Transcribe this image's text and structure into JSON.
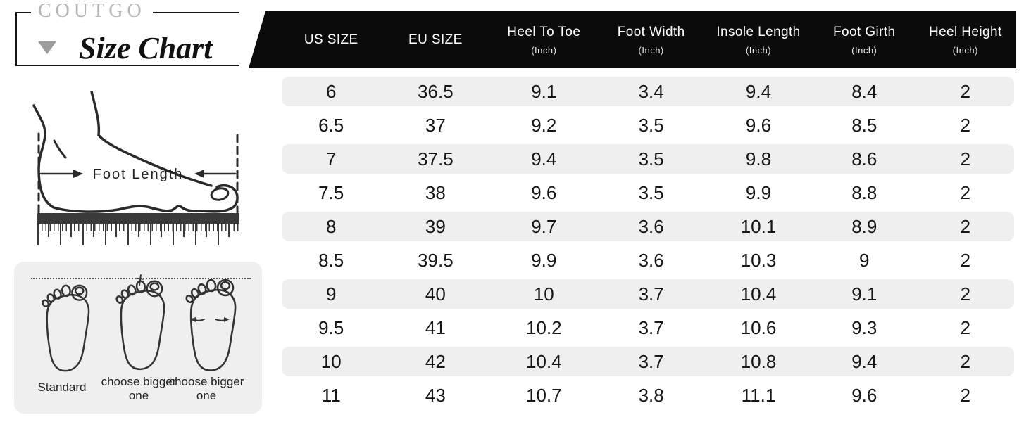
{
  "brand": {
    "logo": "COUTGO",
    "title": "Size Chart"
  },
  "measure_diagram": {
    "label": "Foot Length"
  },
  "fit_guide": {
    "labels": [
      "Standard",
      "choose bigger one",
      "choose bigger one"
    ]
  },
  "colors": {
    "header_bg": "#0b0b0b",
    "stripe": "#efefef",
    "brand_gray": "#b5b5b5"
  },
  "chart_data": {
    "type": "table",
    "columns": [
      {
        "label": "US SIZE",
        "unit": ""
      },
      {
        "label": "EU SIZE",
        "unit": ""
      },
      {
        "label": "Heel To Toe",
        "unit": "(Inch)"
      },
      {
        "label": "Foot Width",
        "unit": "(Inch)"
      },
      {
        "label": "Insole Length",
        "unit": "(Inch)"
      },
      {
        "label": "Foot Girth",
        "unit": "(Inch)"
      },
      {
        "label": "Heel Height",
        "unit": "(Inch)"
      }
    ],
    "rows": [
      [
        "6",
        "36.5",
        "9.1",
        "3.4",
        "9.4",
        "8.4",
        "2"
      ],
      [
        "6.5",
        "37",
        "9.2",
        "3.5",
        "9.6",
        "8.5",
        "2"
      ],
      [
        "7",
        "37.5",
        "9.4",
        "3.5",
        "9.8",
        "8.6",
        "2"
      ],
      [
        "7.5",
        "38",
        "9.6",
        "3.5",
        "9.9",
        "8.8",
        "2"
      ],
      [
        "8",
        "39",
        "9.7",
        "3.6",
        "10.1",
        "8.9",
        "2"
      ],
      [
        "8.5",
        "39.5",
        "9.9",
        "3.6",
        "10.3",
        "9",
        "2"
      ],
      [
        "9",
        "40",
        "10",
        "3.7",
        "10.4",
        "9.1",
        "2"
      ],
      [
        "9.5",
        "41",
        "10.2",
        "3.7",
        "10.6",
        "9.3",
        "2"
      ],
      [
        "10",
        "42",
        "10.4",
        "3.7",
        "10.8",
        "9.4",
        "2"
      ],
      [
        "11",
        "43",
        "10.7",
        "3.8",
        "11.1",
        "9.6",
        "2"
      ]
    ]
  }
}
